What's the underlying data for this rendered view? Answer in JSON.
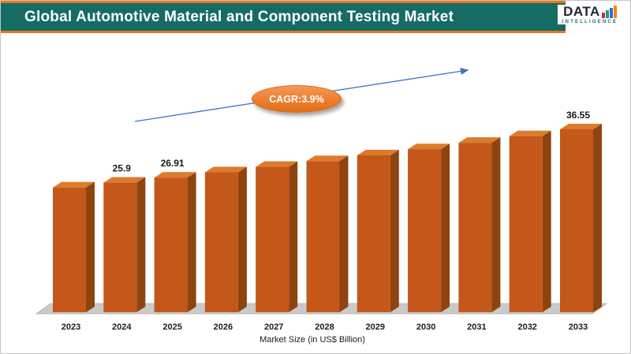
{
  "header": {
    "title": "Global Automotive Material and Component Testing Market",
    "logo_line1": "DATA",
    "logo_line2": "INTELLIGENCE"
  },
  "chart_data": {
    "type": "bar",
    "title": "Global Automotive Material and Component Testing Market",
    "xlabel": "Market Size (in US$ Billion)",
    "annotation": "CAGR:3.9%",
    "categories": [
      "2023",
      "2024",
      "2025",
      "2026",
      "2027",
      "2028",
      "2029",
      "2030",
      "2031",
      "2032",
      "2033"
    ],
    "values": [
      24.93,
      25.9,
      26.91,
      27.96,
      29.05,
      30.18,
      31.36,
      32.58,
      33.85,
      35.17,
      36.55
    ],
    "shown_labels": [
      "",
      "25.9",
      "26.91",
      "",
      "",
      "",
      "",
      "",
      "",
      "",
      "36.55"
    ],
    "ylim": [
      0,
      38
    ],
    "grid": false,
    "legend": "none",
    "style": "3d-bars-on-gray-floor",
    "colors": {
      "bar_front": "#C4571A",
      "bar_top": "#DD7A2B",
      "bar_side": "#8E440E",
      "floor": "#CACACA",
      "floor_edge": "#ABABAB",
      "arrow": "#4472C4",
      "badge": "#ED7D31",
      "header_bg": "#146C64",
      "accent": "#E87722",
      "label_text": "#1a1a1a"
    },
    "logo_bar_colors": [
      "#D7263D",
      "#1B9E77",
      "#2E6FD8",
      "#F2860B"
    ]
  }
}
